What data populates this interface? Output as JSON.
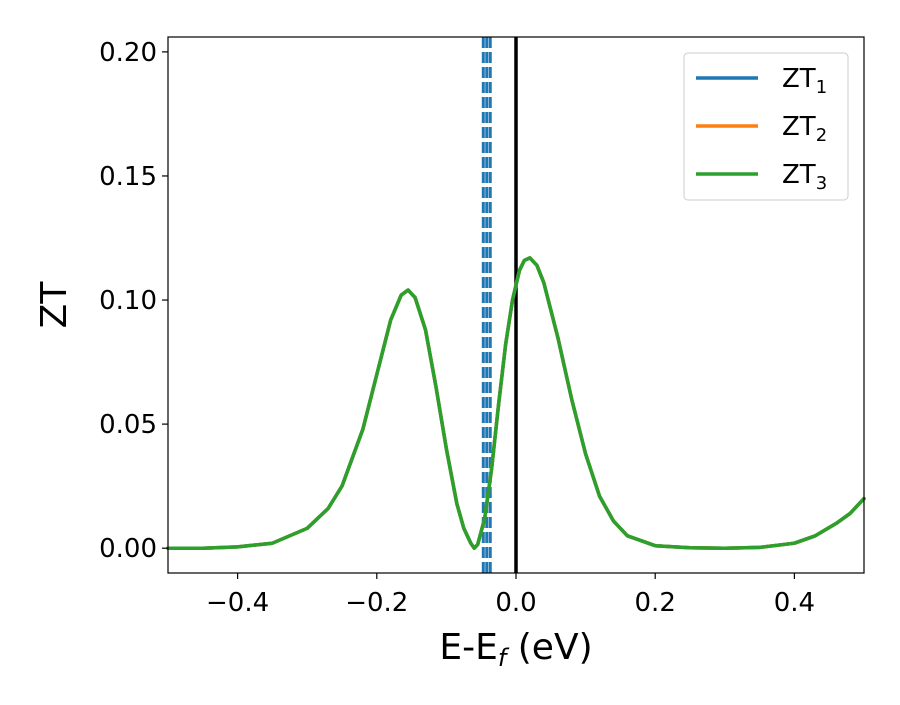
{
  "chart_data": {
    "type": "line",
    "xlabel_main": "E-E",
    "xlabel_sub": "f",
    "xlabel_tail": " (eV)",
    "ylabel": "ZT",
    "xlim": [
      -0.5,
      0.5
    ],
    "ylim": [
      -0.01,
      0.206
    ],
    "x_ticks": [
      -0.4,
      -0.2,
      0.0,
      0.2,
      0.4
    ],
    "x_tick_labels": [
      "−0.4",
      "−0.2",
      "0.0",
      "0.2",
      "0.4"
    ],
    "y_ticks": [
      0.0,
      0.05,
      0.1,
      0.15,
      0.2
    ],
    "y_tick_labels": [
      "0.00",
      "0.05",
      "0.10",
      "0.15",
      "0.20"
    ],
    "grid": false,
    "legend_position": "top-right",
    "series": [
      {
        "name_main": "ZT",
        "name_sub": "1",
        "color": "#1f77b4",
        "x": [
          -0.5,
          -0.45,
          -0.4,
          -0.35,
          -0.3,
          -0.27,
          -0.25,
          -0.22,
          -0.2,
          -0.18,
          -0.165,
          -0.155,
          -0.145,
          -0.13,
          -0.115,
          -0.1,
          -0.085,
          -0.075,
          -0.065,
          -0.06,
          -0.055,
          -0.045,
          -0.035,
          -0.025,
          -0.015,
          -0.005,
          0.0,
          0.005,
          0.012,
          0.02,
          0.03,
          0.04,
          0.06,
          0.08,
          0.1,
          0.12,
          0.14,
          0.16,
          0.2,
          0.25,
          0.3,
          0.35,
          0.4,
          0.43,
          0.46,
          0.48,
          0.5
        ],
        "y": [
          0.0,
          0.0,
          0.0005,
          0.002,
          0.008,
          0.016,
          0.025,
          0.048,
          0.07,
          0.092,
          0.102,
          0.104,
          0.101,
          0.088,
          0.065,
          0.04,
          0.018,
          0.008,
          0.002,
          0.0,
          0.0015,
          0.012,
          0.032,
          0.058,
          0.082,
          0.1,
          0.106,
          0.112,
          0.116,
          0.117,
          0.114,
          0.107,
          0.085,
          0.06,
          0.038,
          0.021,
          0.011,
          0.005,
          0.001,
          0.0002,
          0.0,
          0.0003,
          0.002,
          0.005,
          0.01,
          0.014,
          0.02
        ]
      },
      {
        "name_main": "ZT",
        "name_sub": "2",
        "color": "#ff7f0e",
        "x": [
          -0.5,
          -0.45,
          -0.4,
          -0.35,
          -0.3,
          -0.27,
          -0.25,
          -0.22,
          -0.2,
          -0.18,
          -0.165,
          -0.155,
          -0.145,
          -0.13,
          -0.115,
          -0.1,
          -0.085,
          -0.075,
          -0.065,
          -0.06,
          -0.055,
          -0.045,
          -0.035,
          -0.025,
          -0.015,
          -0.005,
          0.0,
          0.005,
          0.012,
          0.02,
          0.03,
          0.04,
          0.06,
          0.08,
          0.1,
          0.12,
          0.14,
          0.16,
          0.2,
          0.25,
          0.3,
          0.35,
          0.4,
          0.43,
          0.46,
          0.48,
          0.5
        ],
        "y": [
          0.0,
          0.0,
          0.0005,
          0.002,
          0.008,
          0.016,
          0.025,
          0.048,
          0.07,
          0.092,
          0.102,
          0.104,
          0.101,
          0.088,
          0.065,
          0.04,
          0.018,
          0.008,
          0.002,
          0.0,
          0.0015,
          0.012,
          0.032,
          0.058,
          0.082,
          0.1,
          0.106,
          0.112,
          0.116,
          0.117,
          0.114,
          0.107,
          0.085,
          0.06,
          0.038,
          0.021,
          0.011,
          0.005,
          0.001,
          0.0002,
          0.0,
          0.0003,
          0.002,
          0.005,
          0.01,
          0.014,
          0.02
        ]
      },
      {
        "name_main": "ZT",
        "name_sub": "3",
        "color": "#2ca02c",
        "x": [
          -0.5,
          -0.45,
          -0.4,
          -0.35,
          -0.3,
          -0.27,
          -0.25,
          -0.22,
          -0.2,
          -0.18,
          -0.165,
          -0.155,
          -0.145,
          -0.13,
          -0.115,
          -0.1,
          -0.085,
          -0.075,
          -0.065,
          -0.06,
          -0.055,
          -0.045,
          -0.035,
          -0.025,
          -0.015,
          -0.005,
          0.0,
          0.005,
          0.012,
          0.02,
          0.03,
          0.04,
          0.06,
          0.08,
          0.1,
          0.12,
          0.14,
          0.16,
          0.2,
          0.25,
          0.3,
          0.35,
          0.4,
          0.43,
          0.46,
          0.48,
          0.5
        ],
        "y": [
          0.0,
          0.0,
          0.0005,
          0.002,
          0.008,
          0.016,
          0.025,
          0.048,
          0.07,
          0.092,
          0.102,
          0.104,
          0.101,
          0.088,
          0.065,
          0.04,
          0.018,
          0.008,
          0.002,
          0.0,
          0.0015,
          0.012,
          0.032,
          0.058,
          0.082,
          0.1,
          0.106,
          0.112,
          0.116,
          0.117,
          0.114,
          0.107,
          0.085,
          0.06,
          0.038,
          0.021,
          0.011,
          0.005,
          0.001,
          0.0002,
          0.0,
          0.0003,
          0.002,
          0.005,
          0.01,
          0.014,
          0.02
        ]
      }
    ],
    "vertical_lines": [
      {
        "x": -0.047,
        "style": "dashed",
        "color": "#1f77b4"
      },
      {
        "x": -0.042,
        "style": "dashed",
        "color": "#1f77b4"
      },
      {
        "x": -0.037,
        "style": "dashed",
        "color": "#1f77b4"
      },
      {
        "x": 0.0,
        "style": "solid",
        "color": "#000000"
      }
    ]
  }
}
